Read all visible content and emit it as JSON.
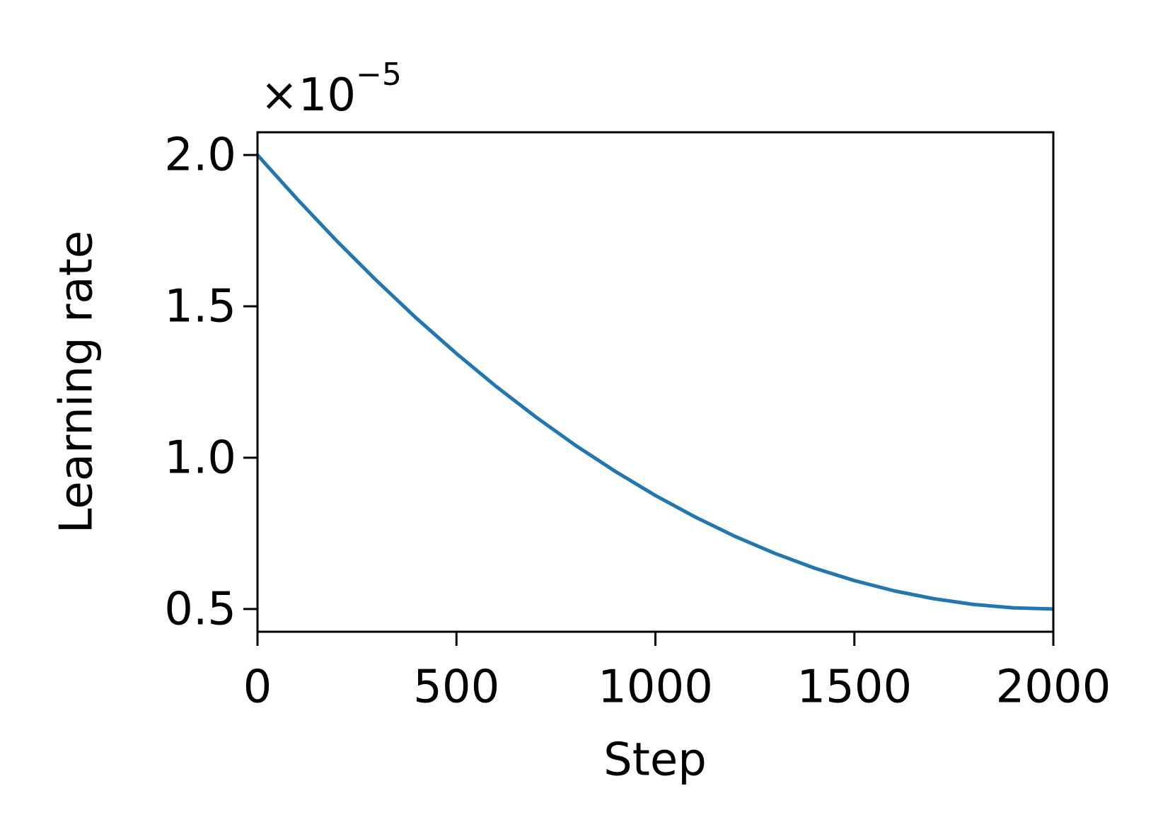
{
  "chart_data": {
    "type": "line",
    "x_label": "Step",
    "y_label": "Learning rate",
    "y_multiplier": {
      "base": "×10",
      "exponent": "−5"
    },
    "x": [
      0,
      100,
      200,
      300,
      400,
      500,
      600,
      700,
      800,
      900,
      1000,
      1100,
      1200,
      1300,
      1400,
      1500,
      1600,
      1700,
      1800,
      1900,
      2000
    ],
    "series": [
      {
        "color": "#1f77b4",
        "values": [
          2.0,
          1.854,
          1.715,
          1.584,
          1.46,
          1.344,
          1.235,
          1.134,
          1.04,
          0.954,
          0.875,
          0.804,
          0.74,
          0.684,
          0.635,
          0.594,
          0.56,
          0.534,
          0.515,
          0.504,
          0.5
        ]
      }
    ],
    "xlim": [
      0,
      2000
    ],
    "xticks": [
      0,
      500,
      1000,
      1500,
      2000
    ],
    "ylim": [
      0.425,
      2.075
    ],
    "yticks": [
      0.5,
      {
        "value": 1,
        "label": "1.0"
      },
      1.5,
      {
        "value": 2,
        "label": "2.0"
      }
    ],
    "grid": false
  }
}
